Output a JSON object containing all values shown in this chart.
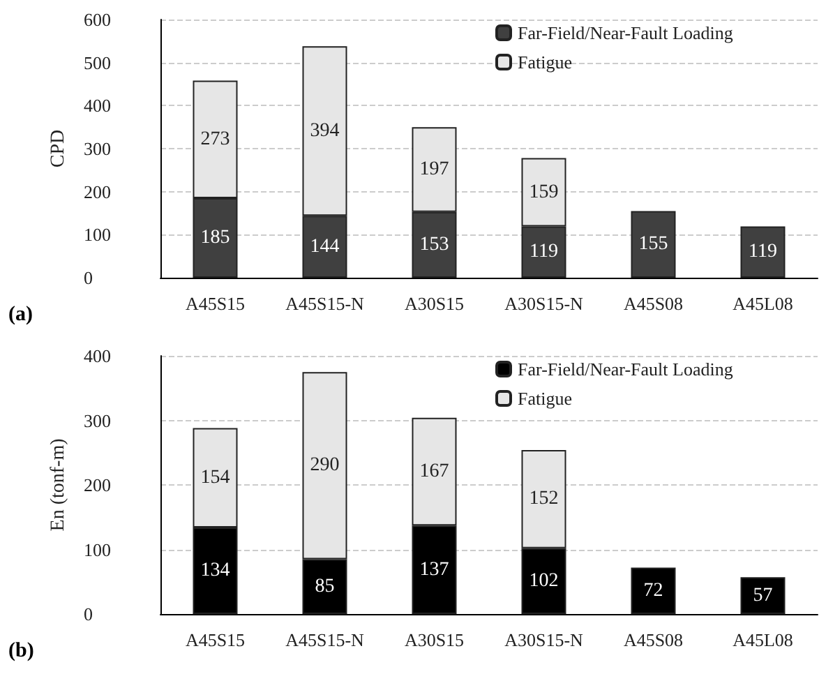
{
  "chart_data": [
    {
      "type": "bar",
      "ylabel": "CPD",
      "annotations": [
        "(a)"
      ],
      "categories": [
        "A45S15",
        "A45S15-N",
        "A30S15",
        "A30S15-N",
        "A45S08",
        "A45L08"
      ],
      "stacked": true,
      "data_labels": true,
      "grid": "y",
      "legend": "top right",
      "ylim": [
        0,
        600
      ],
      "yticks": [
        0,
        100,
        200,
        300,
        400,
        500,
        600
      ],
      "series": [
        {
          "name": "Far-Field/Near-Fault Loading",
          "color": "#404040",
          "values": [
            185,
            144,
            153,
            119,
            155,
            119
          ]
        },
        {
          "name": "Fatigue",
          "color": "#e6e6e6",
          "values": [
            273,
            394,
            197,
            159,
            null,
            null
          ]
        }
      ]
    },
    {
      "type": "bar",
      "ylabel": "En (tonf-m)",
      "annotations": [
        "(b)"
      ],
      "categories": [
        "A45S15",
        "A45S15-N",
        "A30S15",
        "A30S15-N",
        "A45S08",
        "A45L08"
      ],
      "stacked": true,
      "data_labels": true,
      "grid": "y",
      "legend": "top right",
      "ylim": [
        0,
        400
      ],
      "yticks": [
        0,
        100,
        200,
        300,
        400
      ],
      "series": [
        {
          "name": "Far-Field/Near-Fault Loading",
          "color": "#000000",
          "values": [
            134,
            85,
            137,
            102,
            72,
            57
          ]
        },
        {
          "name": "Fatigue",
          "color": "#e6e6e6",
          "values": [
            154,
            290,
            167,
            152,
            null,
            null
          ]
        }
      ]
    }
  ]
}
